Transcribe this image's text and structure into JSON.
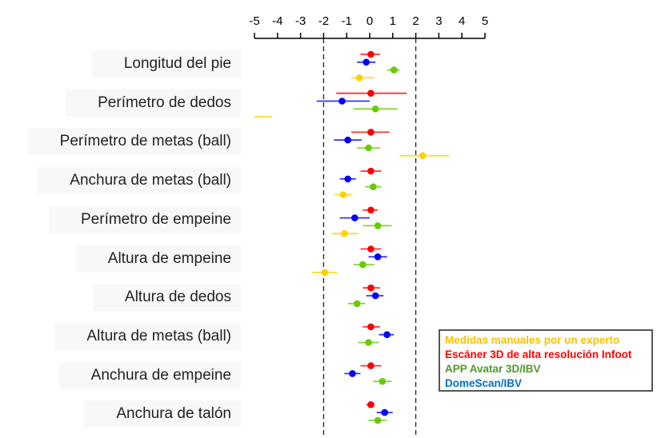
{
  "chart_data": {
    "type": "forest",
    "xlim": [
      -5,
      5
    ],
    "xticks": [
      -5,
      -4,
      -3,
      -2,
      -1,
      0,
      1,
      2,
      3,
      4,
      5
    ],
    "reference_lines": [
      -2,
      2
    ],
    "grid": false,
    "legend_placement": "bottom-right",
    "series": [
      {
        "name": "Escáner 3D de alta resolución Infoot",
        "color": "#ff0000",
        "text_color": "#ff0000"
      },
      {
        "name": "DomeScan/IBV",
        "color": "#0000ff",
        "text_color": "#0070c0"
      },
      {
        "name": "APP Avatar 3D/IBV",
        "color": "#66cc00",
        "text_color": "#4e9a28"
      },
      {
        "name": "Medidas manuales por un experto",
        "color": "#ffd200",
        "text_color": "#ffc000"
      }
    ],
    "legend_order": [
      3,
      0,
      2,
      1
    ],
    "categories": [
      {
        "label": "Longitud del pie",
        "values": [
          {
            "mean": 0.05,
            "ci": [
              -0.4,
              0.45
            ]
          },
          {
            "mean": -0.15,
            "ci": [
              -0.55,
              0.25
            ]
          },
          {
            "mean": 1.05,
            "ci": [
              0.75,
              1.3
            ]
          },
          {
            "mean": -0.45,
            "ci": [
              -0.8,
              0.2
            ]
          }
        ]
      },
      {
        "label": "Perímetro de dedos",
        "values": [
          {
            "mean": 0.05,
            "ci": [
              -1.45,
              1.6
            ]
          },
          {
            "mean": -1.2,
            "ci": [
              -2.3,
              0.0
            ]
          },
          {
            "mean": 0.25,
            "ci": [
              -0.7,
              1.2
            ]
          },
          {
            "mean": null,
            "ci": [
              -5.0,
              -4.25
            ]
          }
        ]
      },
      {
        "label": "Perímetro de metas (ball)",
        "values": [
          {
            "mean": 0.05,
            "ci": [
              -0.8,
              0.85
            ]
          },
          {
            "mean": -0.95,
            "ci": [
              -1.55,
              -0.35
            ]
          },
          {
            "mean": -0.05,
            "ci": [
              -0.55,
              0.45
            ]
          },
          {
            "mean": 2.3,
            "ci": [
              1.3,
              3.45
            ]
          }
        ]
      },
      {
        "label": "Anchura de metas (ball)",
        "values": [
          {
            "mean": 0.05,
            "ci": [
              -0.4,
              0.5
            ]
          },
          {
            "mean": -0.95,
            "ci": [
              -1.3,
              -0.6
            ]
          },
          {
            "mean": 0.15,
            "ci": [
              -0.2,
              0.5
            ]
          },
          {
            "mean": -1.15,
            "ci": [
              -1.55,
              -0.75
            ]
          }
        ]
      },
      {
        "label": "Perímetro de empeine",
        "values": [
          {
            "mean": 0.05,
            "ci": [
              -0.3,
              0.35
            ]
          },
          {
            "mean": -0.65,
            "ci": [
              -1.3,
              0.0
            ]
          },
          {
            "mean": 0.35,
            "ci": [
              -0.3,
              0.95
            ]
          },
          {
            "mean": -1.1,
            "ci": [
              -1.65,
              -0.5
            ]
          }
        ]
      },
      {
        "label": "Altura de empeine",
        "values": [
          {
            "mean": 0.05,
            "ci": [
              -0.4,
              0.5
            ]
          },
          {
            "mean": 0.35,
            "ci": [
              -0.05,
              0.75
            ]
          },
          {
            "mean": -0.3,
            "ci": [
              -0.7,
              0.2
            ]
          },
          {
            "mean": -1.95,
            "ci": [
              -2.5,
              -1.4
            ]
          }
        ]
      },
      {
        "label": "Altura de dedos",
        "values": [
          {
            "mean": 0.05,
            "ci": [
              -0.3,
              0.45
            ]
          },
          {
            "mean": 0.25,
            "ci": [
              -0.15,
              0.6
            ]
          },
          {
            "mean": -0.55,
            "ci": [
              -0.95,
              -0.2
            ]
          },
          null
        ]
      },
      {
        "label": "Altura de metas (ball)",
        "values": [
          {
            "mean": 0.05,
            "ci": [
              -0.3,
              0.45
            ]
          },
          {
            "mean": 0.75,
            "ci": [
              0.4,
              1.05
            ]
          },
          {
            "mean": -0.05,
            "ci": [
              -0.5,
              0.4
            ]
          },
          null
        ]
      },
      {
        "label": "Anchura de empeine",
        "values": [
          {
            "mean": 0.05,
            "ci": [
              -0.4,
              0.5
            ]
          },
          {
            "mean": -0.75,
            "ci": [
              -1.1,
              -0.4
            ]
          },
          {
            "mean": 0.55,
            "ci": [
              0.15,
              0.95
            ]
          },
          null
        ]
      },
      {
        "label": "Anchura de talón",
        "values": [
          {
            "mean": 0.05,
            "ci": [
              -0.15,
              0.2
            ]
          },
          {
            "mean": 0.65,
            "ci": [
              0.3,
              1.0
            ]
          },
          {
            "mean": 0.35,
            "ci": [
              -0.05,
              0.75
            ]
          },
          null
        ]
      }
    ]
  }
}
